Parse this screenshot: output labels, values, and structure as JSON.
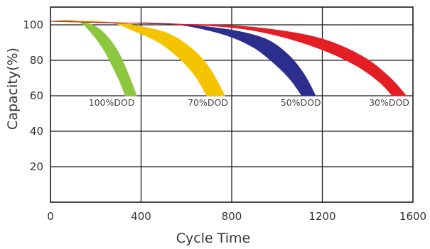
{
  "chart_data": {
    "type": "area",
    "xlabel": "Cycle Time",
    "ylabel": "Capacity(%)",
    "xlim": [
      0,
      1600
    ],
    "ylim": [
      0,
      110
    ],
    "xticks": [
      "0",
      "400",
      "800",
      "1200",
      "1600"
    ],
    "yticks": [
      "20",
      "40",
      "60",
      "80",
      "100"
    ],
    "xtick_values": [
      0,
      400,
      800,
      1200,
      1600
    ],
    "ytick_values": [
      20,
      40,
      60,
      80,
      100
    ],
    "grid": true,
    "series": [
      {
        "name": "100%DOD",
        "color": "#8dc63f",
        "upper": {
          "x": [
            0,
            120,
            200,
            260,
            310,
            350,
            380
          ],
          "y": [
            102,
            102,
            99,
            92,
            82,
            70,
            60
          ]
        },
        "lower": {
          "x": [
            0,
            120,
            190,
            240,
            280,
            310,
            330
          ],
          "y": [
            102,
            102,
            94,
            85,
            75,
            67,
            60
          ]
        }
      },
      {
        "name": "70%DOD",
        "color": "#f5c400",
        "upper": {
          "x": [
            0,
            250,
            400,
            520,
            620,
            700,
            770
          ],
          "y": [
            102,
            101.5,
            99,
            95,
            87,
            76,
            60
          ]
        },
        "lower": {
          "x": [
            0,
            250,
            380,
            480,
            570,
            640,
            690
          ],
          "y": [
            102,
            101.5,
            96,
            90,
            81,
            71,
            60
          ]
        }
      },
      {
        "name": "50%DOD",
        "color": "#2b2e8c",
        "upper": {
          "x": [
            0,
            300,
            450,
            600,
            800,
            950,
            1050,
            1120,
            1170
          ],
          "y": [
            102,
            101,
            101,
            100,
            97,
            92,
            83,
            72,
            60
          ]
        },
        "lower": {
          "x": [
            0,
            300,
            450,
            600,
            780,
            900,
            990,
            1060,
            1110
          ],
          "y": [
            102,
            101,
            101,
            99.5,
            94,
            87,
            78,
            69,
            60
          ]
        }
      },
      {
        "name": "30%DOD",
        "color": "#e31e24",
        "upper": {
          "x": [
            0,
            500,
            800,
            1000,
            1200,
            1380,
            1500,
            1570
          ],
          "y": [
            102,
            100.5,
            99.5,
            97,
            92,
            82,
            70,
            60
          ]
        },
        "lower": {
          "x": [
            0,
            500,
            800,
            1000,
            1200,
            1350,
            1450,
            1510
          ],
          "y": [
            102,
            100.5,
            98.5,
            94,
            86,
            77,
            68,
            60
          ]
        }
      }
    ],
    "band_labels": [
      {
        "text": "100%DOD",
        "x": 270,
        "y": 56
      },
      {
        "text": "70%DOD",
        "x": 695,
        "y": 56
      },
      {
        "text": "50%DOD",
        "x": 1105,
        "y": 56
      },
      {
        "text": "30%DOD",
        "x": 1495,
        "y": 56
      }
    ]
  }
}
